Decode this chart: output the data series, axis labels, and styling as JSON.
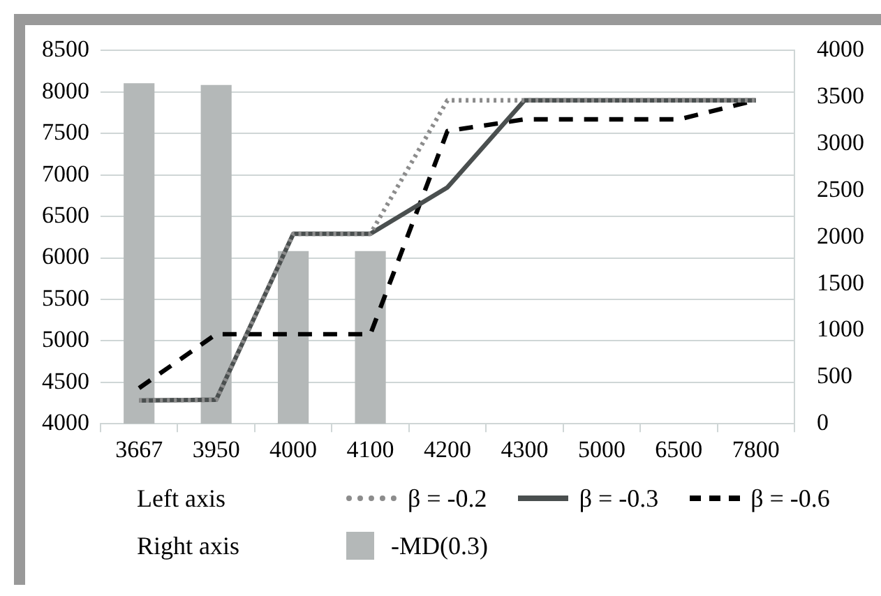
{
  "chart_data": {
    "type": "line",
    "categories": [
      "3667",
      "3950",
      "4000",
      "4100",
      "4200",
      "4300",
      "5000",
      "6500",
      "7800"
    ],
    "series": [
      {
        "name": "β = -0.2",
        "color": "#8c8c8c",
        "line_style": "dotted",
        "values": [
          4280,
          4290,
          6290,
          6290,
          7900,
          7900,
          7900,
          7900,
          7900
        ]
      },
      {
        "name": "β = -0.3",
        "color": "#4a4f4f",
        "line_style": "solid",
        "values": [
          4280,
          4290,
          6290,
          6290,
          6850,
          7900,
          7900,
          7900,
          7900
        ]
      },
      {
        "name": "β = -0.6",
        "color": "#000000",
        "line_style": "dashed",
        "values": [
          4430,
          5080,
          5080,
          5080,
          7530,
          7670,
          7670,
          7670,
          7900
        ]
      },
      {
        "name": "-MD(0.3)",
        "type": "bar",
        "axis": "y2",
        "color": "#b4b8b8",
        "values": [
          3650,
          3630,
          1850,
          1850,
          null,
          null,
          null,
          null,
          null
        ]
      }
    ],
    "ylim": [
      4000,
      8500
    ],
    "yticks": [
      4000,
      4500,
      5000,
      5500,
      6000,
      6500,
      7000,
      7500,
      8000,
      8500
    ],
    "y2lim": [
      0,
      4000
    ],
    "y2ticks": [
      0,
      500,
      1000,
      1500,
      2000,
      2500,
      3000,
      3500,
      4000
    ],
    "annotations": [
      "Left axis",
      "Right axis"
    ],
    "grid": "y",
    "legend": "bottom",
    "marker": "none"
  }
}
